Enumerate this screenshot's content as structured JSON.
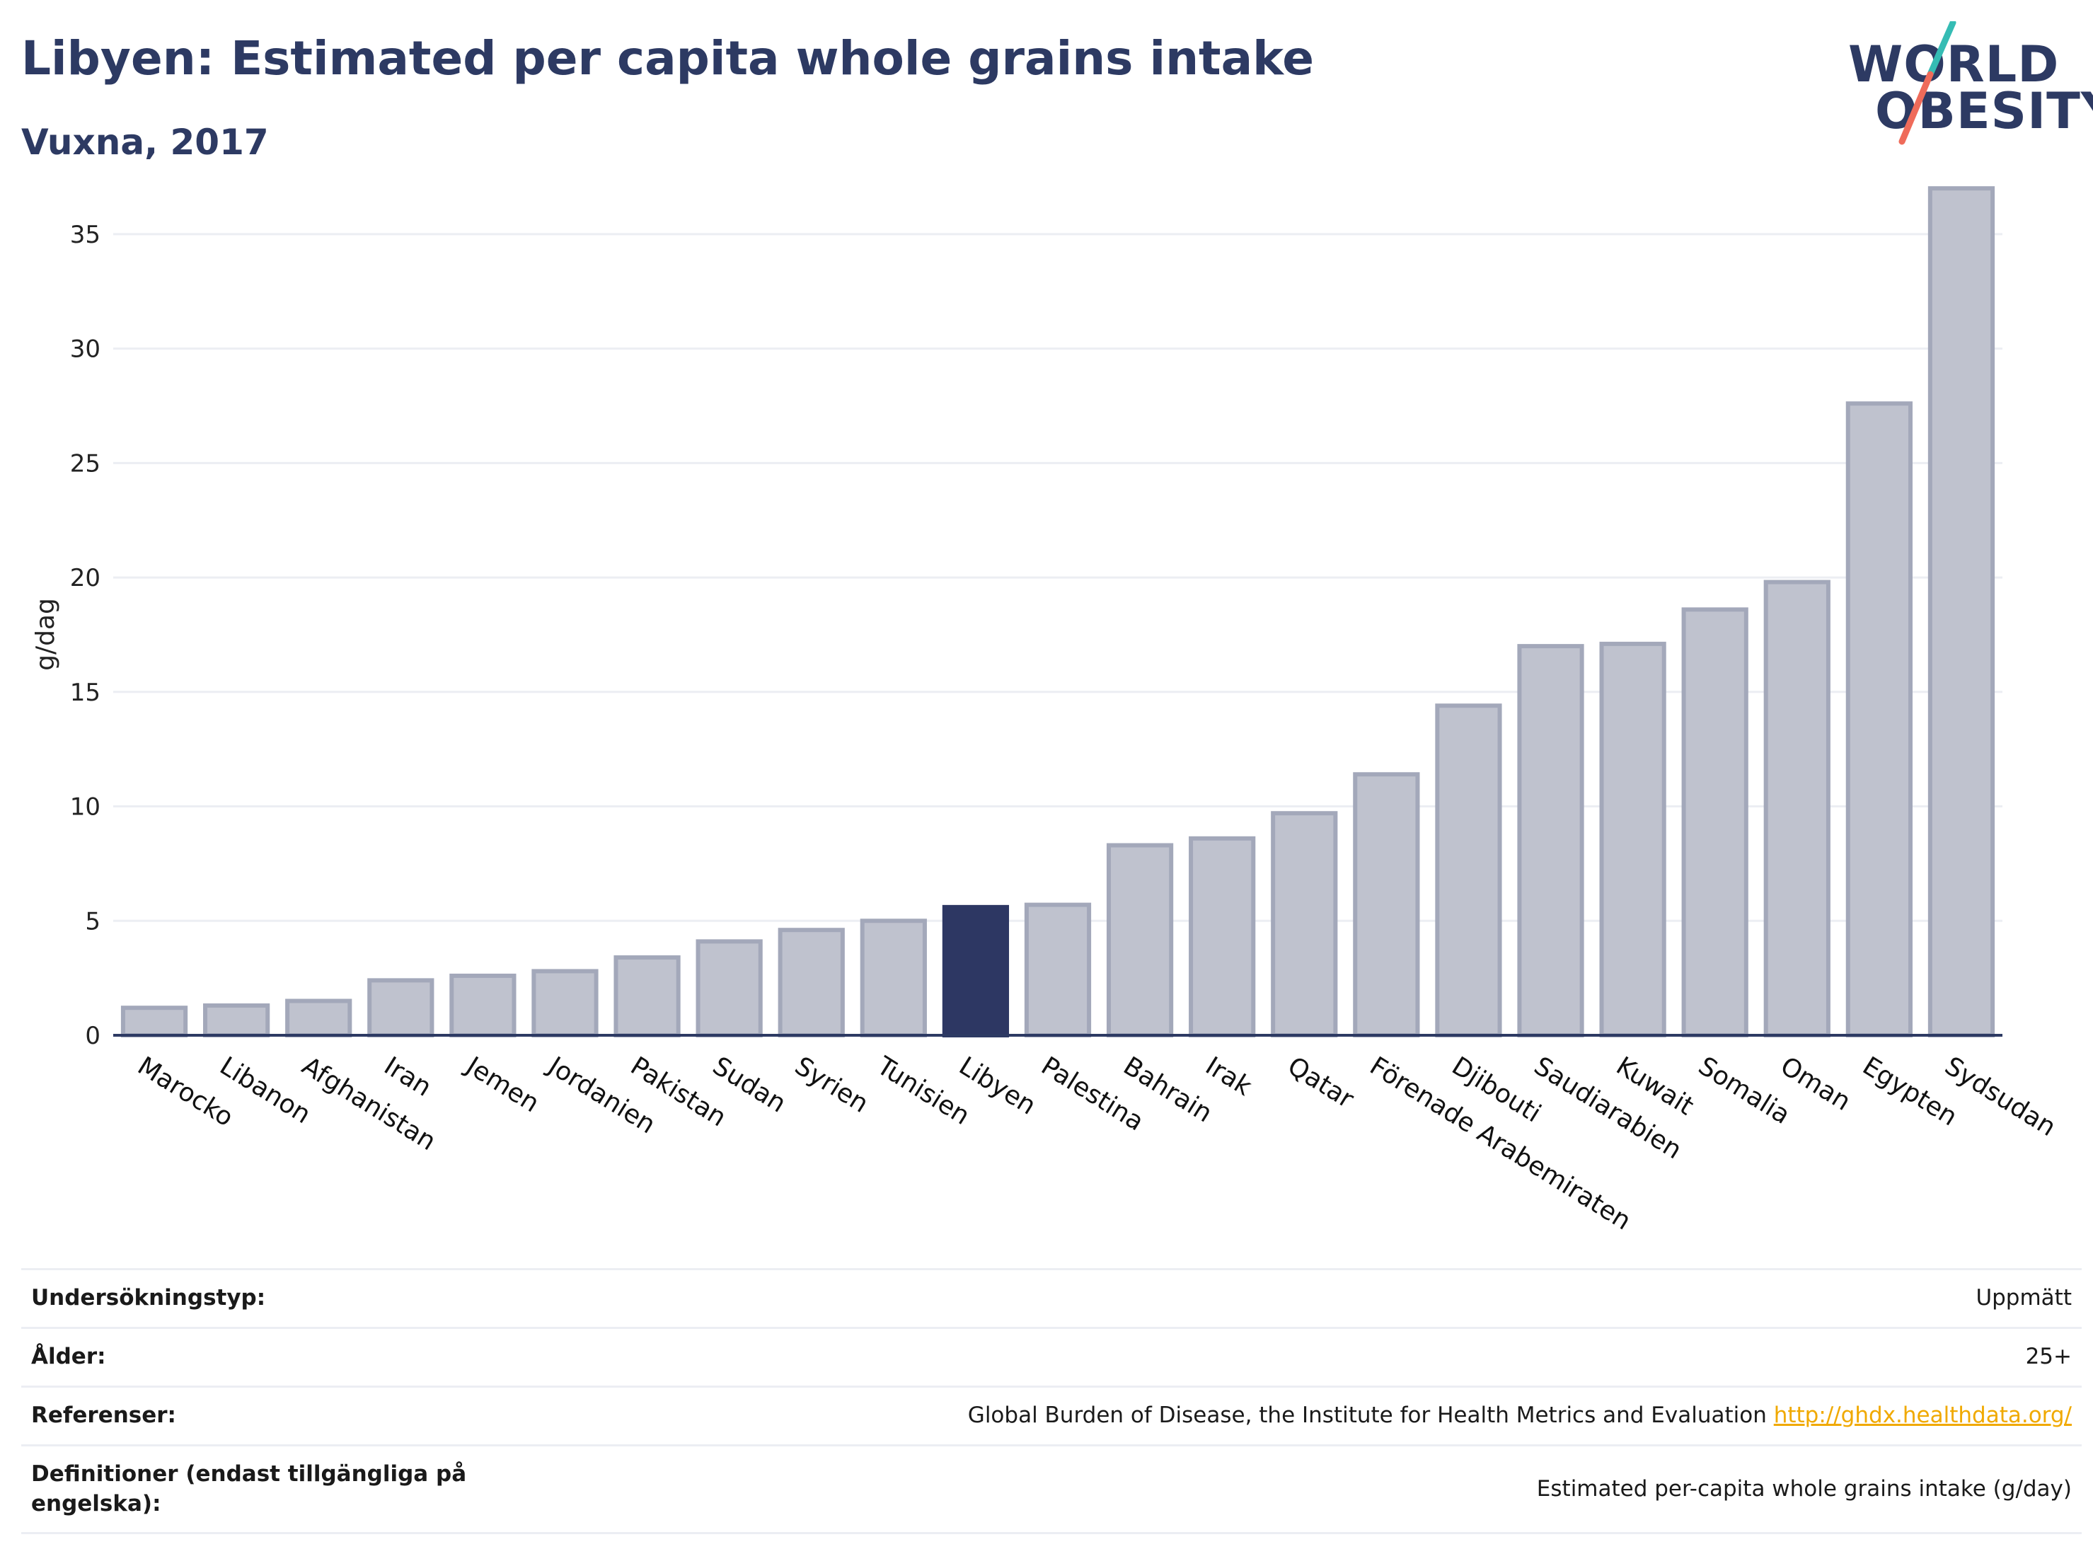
{
  "header": {
    "title": "Libyen: Estimated per capita whole grains intake",
    "subtitle": "Vuxna, 2017"
  },
  "logo": {
    "line1": "WORLD",
    "line2": "OBESITY",
    "colors": {
      "slash_top": "#35bcb4",
      "slash_bottom": "#ef6b5a",
      "text": "#2d3a63"
    }
  },
  "chart_data": {
    "type": "bar",
    "categories": [
      "Marocko",
      "Libanon",
      "Afghanistan",
      "Iran",
      "Jemen",
      "Jordanien",
      "Pakistan",
      "Sudan",
      "Syrien",
      "Tunisien",
      "Libyen",
      "Palestina",
      "Bahrain",
      "Irak",
      "Qatar",
      "Förenade Arabemiraten",
      "Djibouti",
      "Saudiarabien",
      "Kuwait",
      "Somalia",
      "Oman",
      "Egypten",
      "Sydsudan"
    ],
    "values": [
      1.2,
      1.3,
      1.5,
      2.4,
      2.6,
      2.8,
      3.4,
      4.1,
      4.6,
      5.0,
      5.6,
      5.7,
      8.3,
      8.6,
      9.7,
      11.4,
      14.4,
      17.0,
      17.1,
      18.6,
      19.8,
      27.6,
      37.0
    ],
    "highlight": "Libyen",
    "title": "Libyen: Estimated per capita whole grains intake",
    "subtitle": "Vuxna, 2017",
    "xlabel": "",
    "ylabel": "g/dag",
    "ylim": [
      0,
      37.5
    ],
    "yticks": [
      0,
      5,
      10,
      15,
      20,
      25,
      30,
      35
    ],
    "grid": true,
    "colors": {
      "bar": "#bfc2ce",
      "bar_border": "#a3a8ba",
      "highlight": "#2d3763",
      "axis": "#2d3a63",
      "grid": "#eceef3"
    }
  },
  "meta": [
    {
      "label": "Undersökningstyp:",
      "value": "Uppmätt"
    },
    {
      "label": "Ålder:",
      "value": "25+"
    },
    {
      "label": "Referenser:",
      "value": "Global Burden of Disease, the Institute for Health Metrics and Evaluation",
      "link": "http://ghdx.healthdata.org/"
    },
    {
      "label": "Definitioner (endast tillgängliga på engelska):",
      "value": "Estimated per-capita whole grains intake (g/day)"
    }
  ]
}
